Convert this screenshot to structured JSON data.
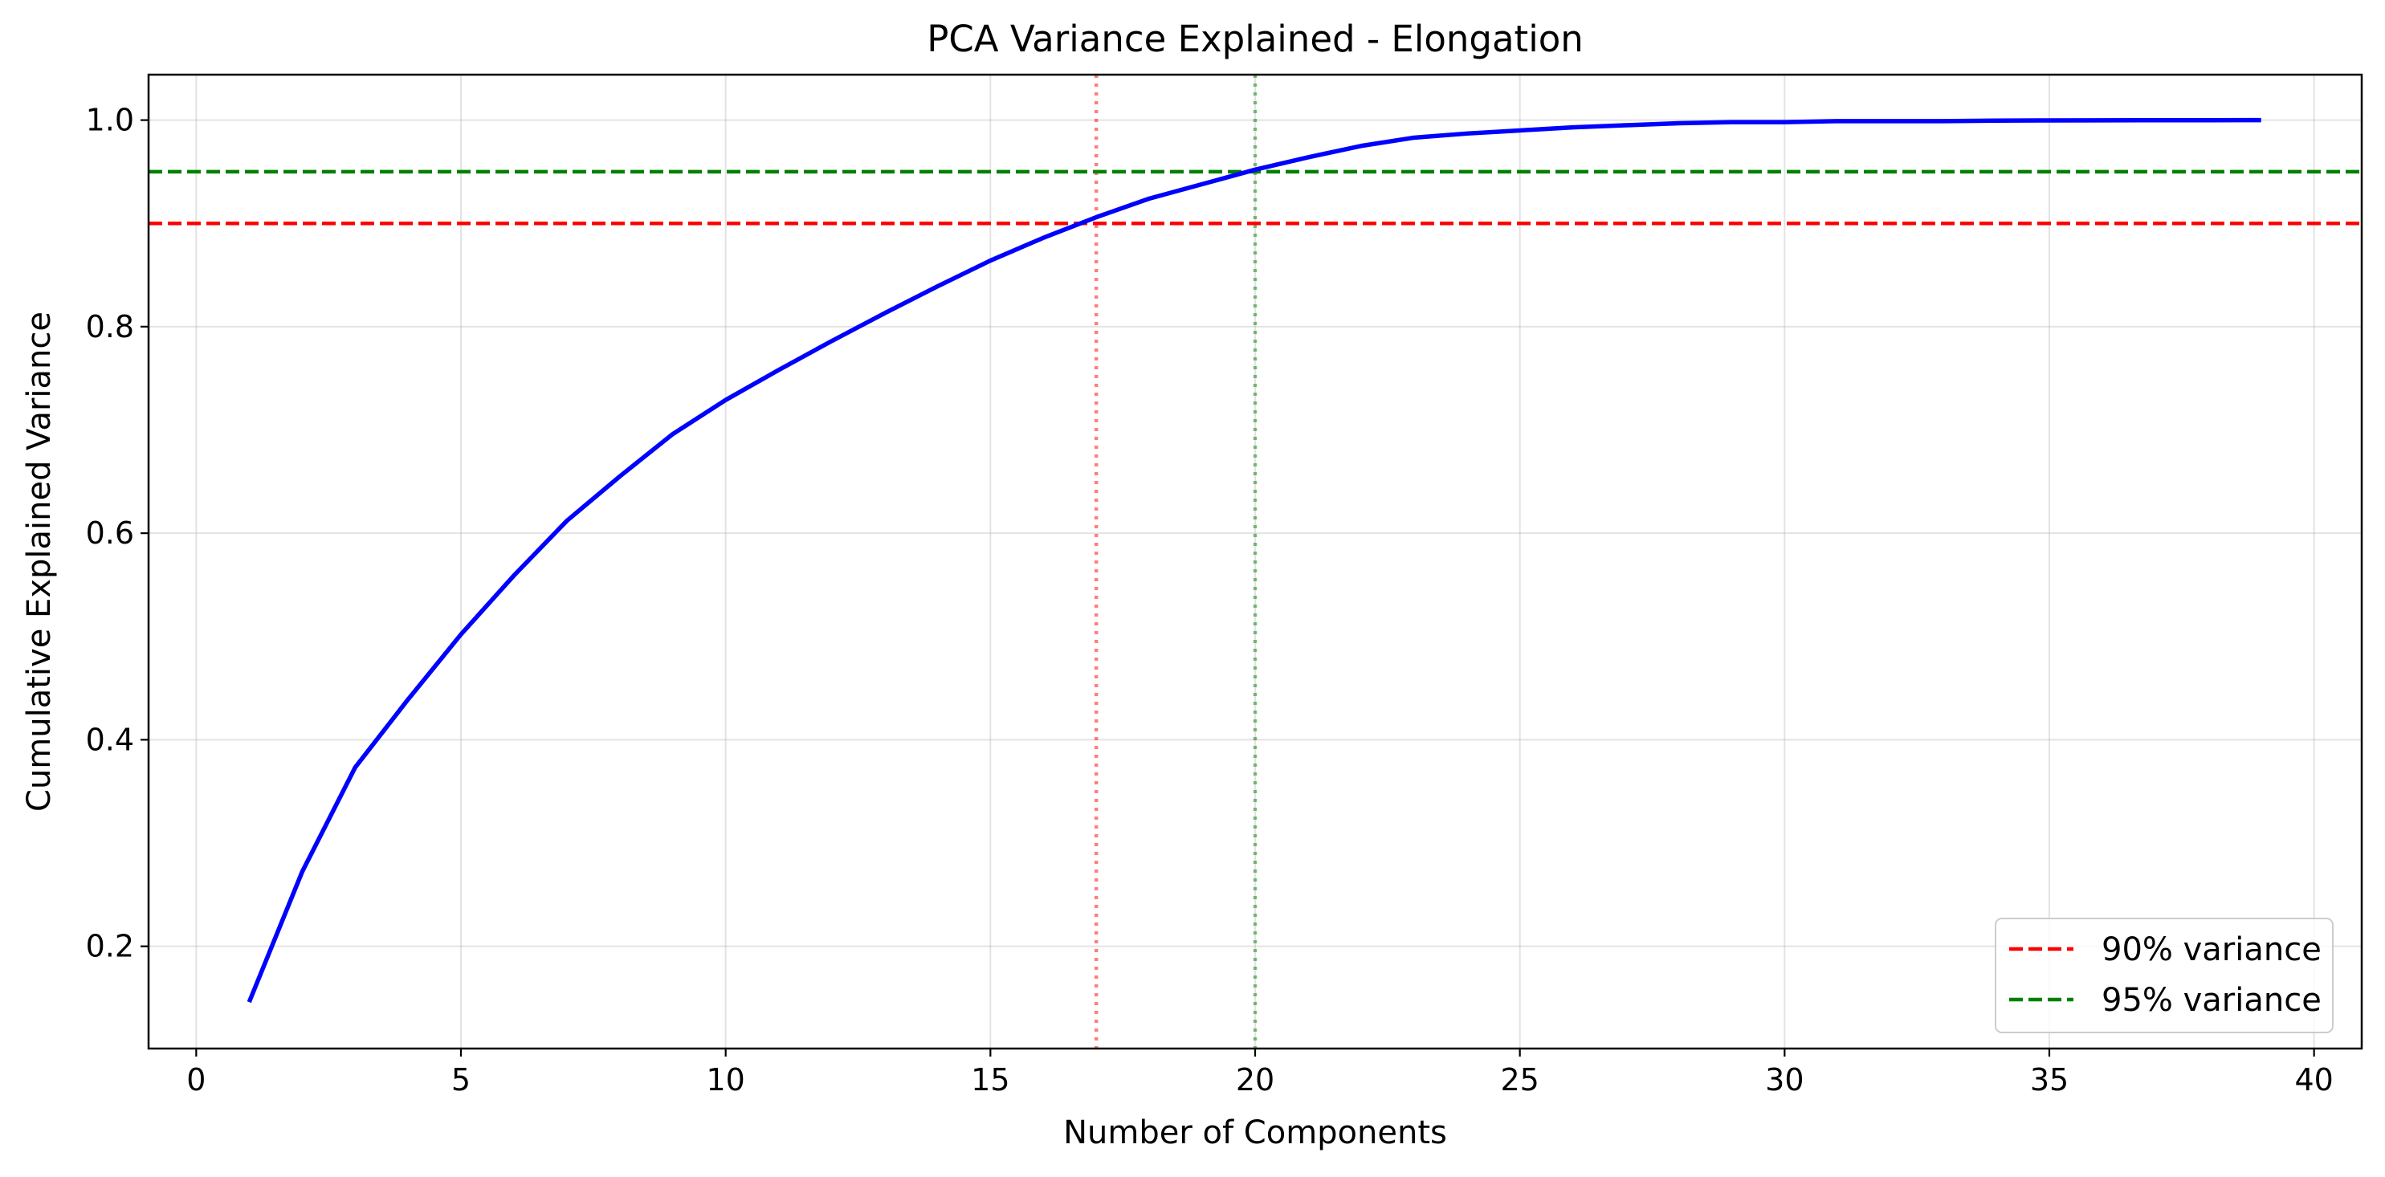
{
  "chart_data": {
    "type": "line",
    "title": "PCA Variance Explained - Elongation",
    "xlabel": "Number of Components",
    "ylabel": "Cumulative Explained Variance",
    "xlim": [
      -0.9,
      40.9
    ],
    "ylim": [
      0.101,
      1.044
    ],
    "xticks": [
      0,
      5,
      10,
      15,
      20,
      25,
      30,
      35,
      40
    ],
    "xtick_labels": [
      "0",
      "5",
      "10",
      "15",
      "20",
      "25",
      "30",
      "35",
      "40"
    ],
    "yticks": [
      0.2,
      0.4,
      0.6,
      0.8,
      1.0
    ],
    "ytick_labels": [
      "0.2",
      "0.4",
      "0.6",
      "0.8",
      "1.0"
    ],
    "grid": true,
    "legend_position": "lower-right",
    "series": [
      {
        "color": "#0000ff",
        "style": "solid",
        "x": [
          1,
          2,
          3,
          4,
          5,
          6,
          7,
          8,
          9,
          10,
          11,
          12,
          13,
          14,
          15,
          16,
          17,
          18,
          19,
          20,
          21,
          22,
          23,
          24,
          25,
          26,
          27,
          28,
          29,
          30,
          31,
          32,
          33,
          34,
          35,
          36,
          37,
          38,
          39
        ],
        "y": [
          0.146,
          0.272,
          0.373,
          0.439,
          0.502,
          0.559,
          0.612,
          0.655,
          0.696,
          0.729,
          0.758,
          0.786,
          0.813,
          0.839,
          0.864,
          0.886,
          0.906,
          0.924,
          0.938,
          0.952,
          0.964,
          0.975,
          0.983,
          0.987,
          0.99,
          0.993,
          0.995,
          0.997,
          0.998,
          0.998,
          0.999,
          0.999,
          0.999,
          0.9995,
          0.9997,
          0.9998,
          0.9999,
          0.9999,
          1.0
        ]
      }
    ],
    "hlines": [
      {
        "name": "90% variance",
        "y": 0.9,
        "color": "#ff0000",
        "style": "dashed"
      },
      {
        "name": "95% variance",
        "y": 0.95,
        "color": "#008000",
        "style": "dashed"
      }
    ],
    "vlines": [
      {
        "x": 17,
        "color": "#ff0000",
        "style": "dotted"
      },
      {
        "x": 20,
        "color": "#008000",
        "style": "dotted"
      }
    ]
  }
}
